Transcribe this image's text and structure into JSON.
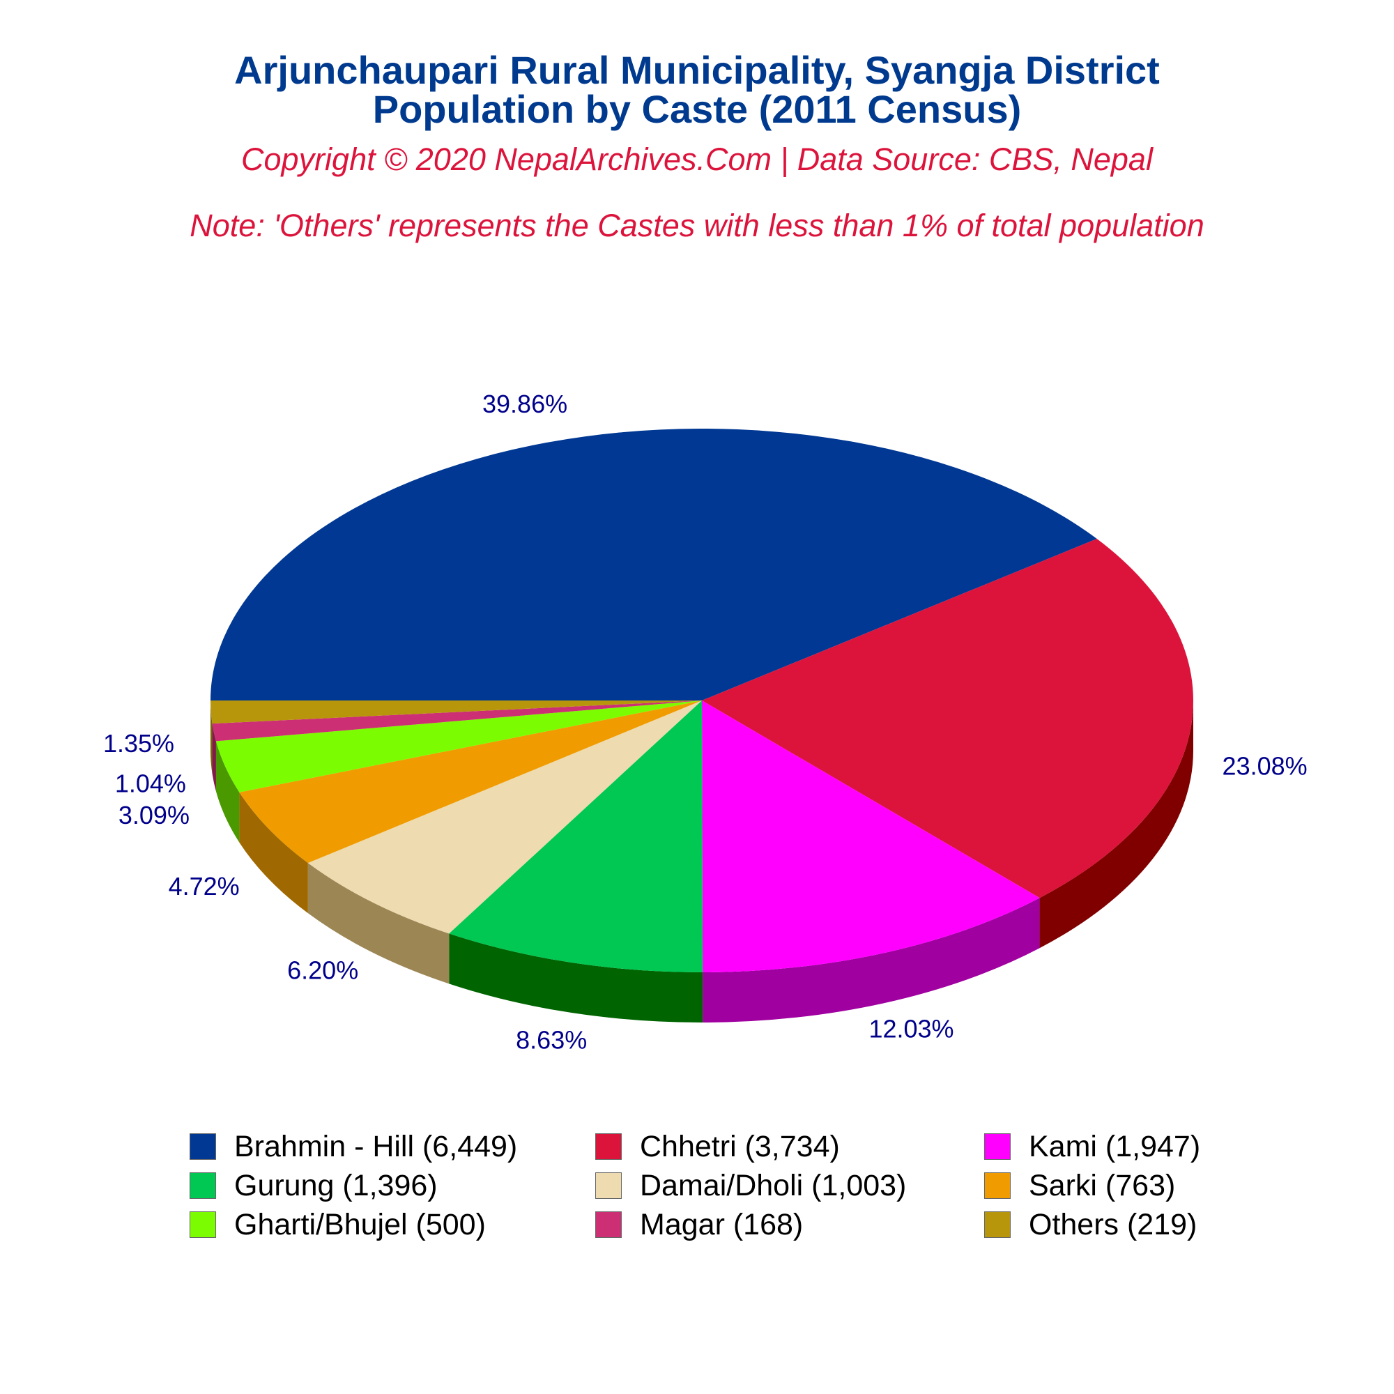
{
  "chart_data": {
    "type": "pie",
    "title": "Arjunchaupari Rural Municipality, Syangja District",
    "subtitle": "Population by Caste (2011 Census)",
    "copyright": "Copyright © 2020 NepalArchives.Com | Data Source: CBS, Nepal",
    "note": "Note: 'Others' represents the Castes with less than 1% of total population",
    "three_d": true,
    "legend_position": "bottom",
    "colors": {
      "title": "#003a8f",
      "subtitle_text": "#dc143c",
      "data_label": "#00008b"
    },
    "slices": [
      {
        "label": "Brahmin - Hill (6,449)",
        "value": 6449,
        "percent_label": "39.86%",
        "color": "#003893",
        "side_color": "#002060"
      },
      {
        "label": "Chhetri (3,734)",
        "value": 3734,
        "percent_label": "23.08%",
        "color": "#dc143c",
        "side_color": "#800000"
      },
      {
        "label": "Kami (1,947)",
        "value": 1947,
        "percent_label": "12.03%",
        "color": "#ff00ff",
        "side_color": "#a000a0"
      },
      {
        "label": "Gurung (1,396)",
        "value": 1396,
        "percent_label": "8.63%",
        "color": "#00c853",
        "side_color": "#006400"
      },
      {
        "label": "Damai/Dholi (1,003)",
        "value": 1003,
        "percent_label": "6.20%",
        "color": "#eedbb0",
        "side_color": "#9c8654"
      },
      {
        "label": "Sarki (763)",
        "value": 763,
        "percent_label": "4.72%",
        "color": "#f09c00",
        "side_color": "#a06800"
      },
      {
        "label": "Gharti/Bhujel (500)",
        "value": 500,
        "percent_label": "3.09%",
        "color": "#7cfc00",
        "side_color": "#4a9900"
      },
      {
        "label": "Magar (168)",
        "value": 168,
        "percent_label": "1.04%",
        "color": "#cc2f73",
        "side_color": "#801a48"
      },
      {
        "label": "Others (219)",
        "value": 219,
        "percent_label": "1.35%",
        "color": "#b8960c",
        "side_color": "#7a6308"
      }
    ]
  }
}
